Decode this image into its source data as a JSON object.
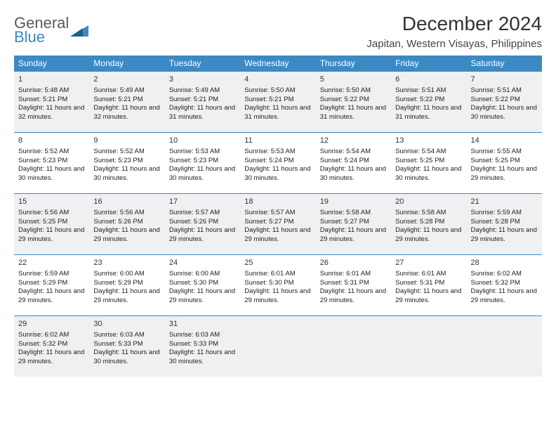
{
  "brand": {
    "line1": "General",
    "line2": "Blue"
  },
  "title": "December 2024",
  "location": "Japitan, Western Visayas, Philippines",
  "colors": {
    "header_bg": "#3b8ac4",
    "header_fg": "#ffffff",
    "shade_bg": "#eef0f2",
    "border": "#3b8ac4",
    "logo_gray": "#5a5a5a",
    "logo_blue": "#3b8ac4"
  },
  "day_headers": [
    "Sunday",
    "Monday",
    "Tuesday",
    "Wednesday",
    "Thursday",
    "Friday",
    "Saturday"
  ],
  "weeks": [
    {
      "shaded": true,
      "cells": [
        {
          "n": "1",
          "sr": "5:48 AM",
          "ss": "5:21 PM",
          "dl": "11 hours and 32 minutes."
        },
        {
          "n": "2",
          "sr": "5:49 AM",
          "ss": "5:21 PM",
          "dl": "11 hours and 32 minutes."
        },
        {
          "n": "3",
          "sr": "5:49 AM",
          "ss": "5:21 PM",
          "dl": "11 hours and 31 minutes."
        },
        {
          "n": "4",
          "sr": "5:50 AM",
          "ss": "5:21 PM",
          "dl": "11 hours and 31 minutes."
        },
        {
          "n": "5",
          "sr": "5:50 AM",
          "ss": "5:22 PM",
          "dl": "11 hours and 31 minutes."
        },
        {
          "n": "6",
          "sr": "5:51 AM",
          "ss": "5:22 PM",
          "dl": "11 hours and 31 minutes."
        },
        {
          "n": "7",
          "sr": "5:51 AM",
          "ss": "5:22 PM",
          "dl": "11 hours and 30 minutes."
        }
      ]
    },
    {
      "shaded": false,
      "cells": [
        {
          "n": "8",
          "sr": "5:52 AM",
          "ss": "5:23 PM",
          "dl": "11 hours and 30 minutes."
        },
        {
          "n": "9",
          "sr": "5:52 AM",
          "ss": "5:23 PM",
          "dl": "11 hours and 30 minutes."
        },
        {
          "n": "10",
          "sr": "5:53 AM",
          "ss": "5:23 PM",
          "dl": "11 hours and 30 minutes."
        },
        {
          "n": "11",
          "sr": "5:53 AM",
          "ss": "5:24 PM",
          "dl": "11 hours and 30 minutes."
        },
        {
          "n": "12",
          "sr": "5:54 AM",
          "ss": "5:24 PM",
          "dl": "11 hours and 30 minutes."
        },
        {
          "n": "13",
          "sr": "5:54 AM",
          "ss": "5:25 PM",
          "dl": "11 hours and 30 minutes."
        },
        {
          "n": "14",
          "sr": "5:55 AM",
          "ss": "5:25 PM",
          "dl": "11 hours and 29 minutes."
        }
      ]
    },
    {
      "shaded": true,
      "cells": [
        {
          "n": "15",
          "sr": "5:56 AM",
          "ss": "5:25 PM",
          "dl": "11 hours and 29 minutes."
        },
        {
          "n": "16",
          "sr": "5:56 AM",
          "ss": "5:26 PM",
          "dl": "11 hours and 29 minutes."
        },
        {
          "n": "17",
          "sr": "5:57 AM",
          "ss": "5:26 PM",
          "dl": "11 hours and 29 minutes."
        },
        {
          "n": "18",
          "sr": "5:57 AM",
          "ss": "5:27 PM",
          "dl": "11 hours and 29 minutes."
        },
        {
          "n": "19",
          "sr": "5:58 AM",
          "ss": "5:27 PM",
          "dl": "11 hours and 29 minutes."
        },
        {
          "n": "20",
          "sr": "5:58 AM",
          "ss": "5:28 PM",
          "dl": "11 hours and 29 minutes."
        },
        {
          "n": "21",
          "sr": "5:59 AM",
          "ss": "5:28 PM",
          "dl": "11 hours and 29 minutes."
        }
      ]
    },
    {
      "shaded": false,
      "cells": [
        {
          "n": "22",
          "sr": "5:59 AM",
          "ss": "5:29 PM",
          "dl": "11 hours and 29 minutes."
        },
        {
          "n": "23",
          "sr": "6:00 AM",
          "ss": "5:29 PM",
          "dl": "11 hours and 29 minutes."
        },
        {
          "n": "24",
          "sr": "6:00 AM",
          "ss": "5:30 PM",
          "dl": "11 hours and 29 minutes."
        },
        {
          "n": "25",
          "sr": "6:01 AM",
          "ss": "5:30 PM",
          "dl": "11 hours and 29 minutes."
        },
        {
          "n": "26",
          "sr": "6:01 AM",
          "ss": "5:31 PM",
          "dl": "11 hours and 29 minutes."
        },
        {
          "n": "27",
          "sr": "6:01 AM",
          "ss": "5:31 PM",
          "dl": "11 hours and 29 minutes."
        },
        {
          "n": "28",
          "sr": "6:02 AM",
          "ss": "5:32 PM",
          "dl": "11 hours and 29 minutes."
        }
      ]
    },
    {
      "shaded": true,
      "cells": [
        {
          "n": "29",
          "sr": "6:02 AM",
          "ss": "5:32 PM",
          "dl": "11 hours and 29 minutes."
        },
        {
          "n": "30",
          "sr": "6:03 AM",
          "ss": "5:33 PM",
          "dl": "11 hours and 30 minutes."
        },
        {
          "n": "31",
          "sr": "6:03 AM",
          "ss": "5:33 PM",
          "dl": "11 hours and 30 minutes."
        },
        null,
        null,
        null,
        null
      ]
    }
  ],
  "labels": {
    "sunrise": "Sunrise:",
    "sunset": "Sunset:",
    "daylight": "Daylight:"
  }
}
